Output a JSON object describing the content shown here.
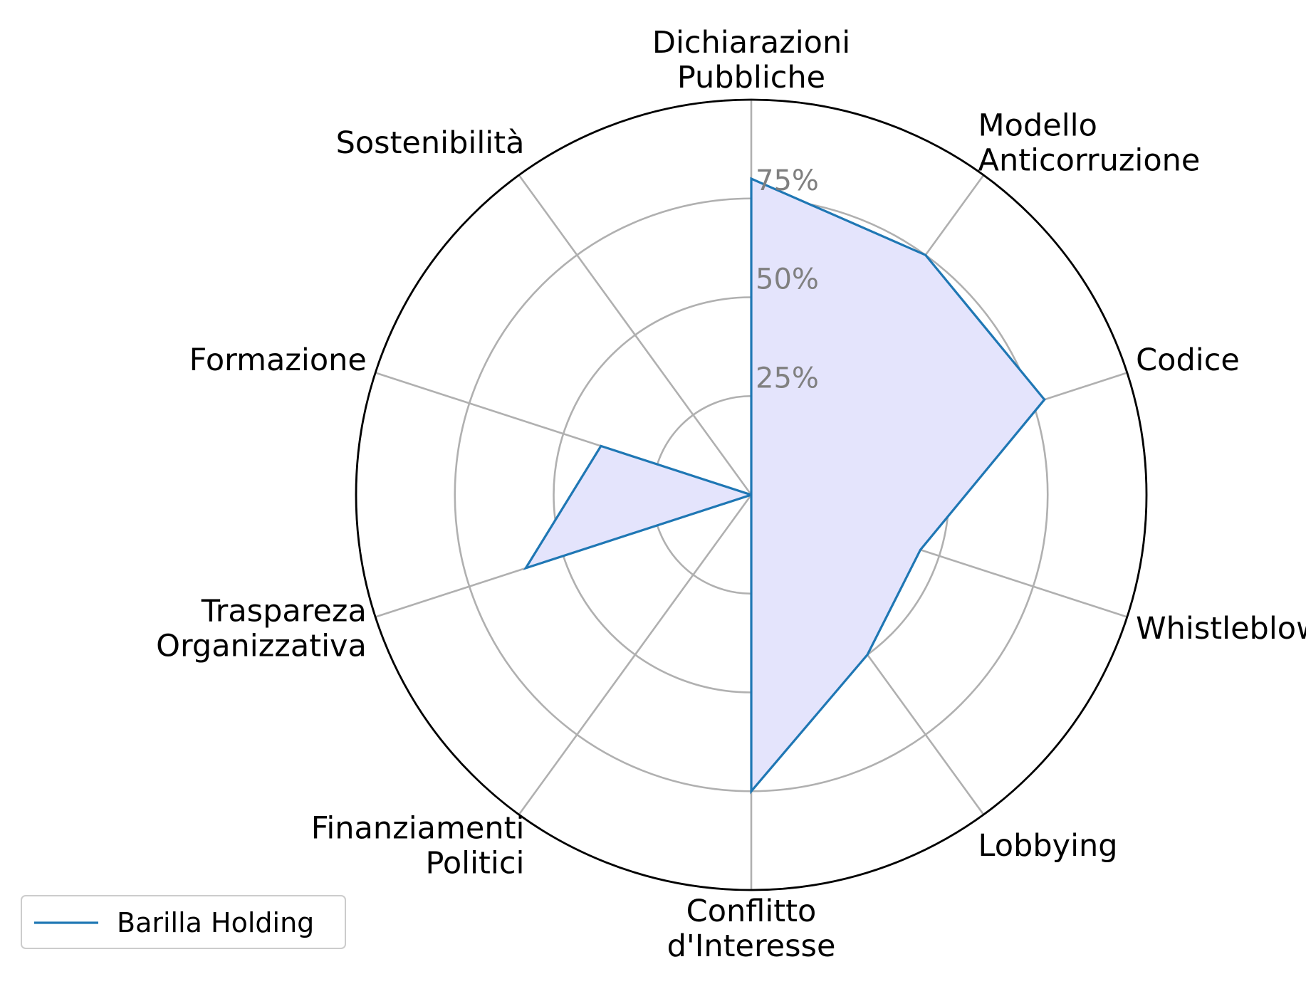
{
  "chart_data": {
    "type": "radar",
    "categories": [
      "Dichiarazioni\nPubbliche",
      "Modello\nAnticorruzione",
      "Codice",
      "Whistleblowing",
      "Lobbying",
      "Conflitto\nd'Interesse",
      "Finanziamenti\nPolitici",
      "Traspareza\nOrganizzativa",
      "Formazione",
      "Sostenibilità"
    ],
    "series": [
      {
        "name": "Barilla Holding",
        "values": [
          80,
          75,
          78,
          45,
          50,
          75,
          0,
          60,
          40,
          0
        ]
      }
    ],
    "rlim": [
      0,
      100
    ],
    "rticks": [
      25,
      50,
      75
    ],
    "rtick_labels": [
      "25%",
      "50%",
      "75%"
    ],
    "grid": true,
    "legend_position": "bottom-left",
    "colors": {
      "line": "#1f77b4",
      "fill": "#e4e4fc",
      "grid": "#b0b0b0",
      "frame": "#000000",
      "tick_text": "#808080"
    }
  }
}
